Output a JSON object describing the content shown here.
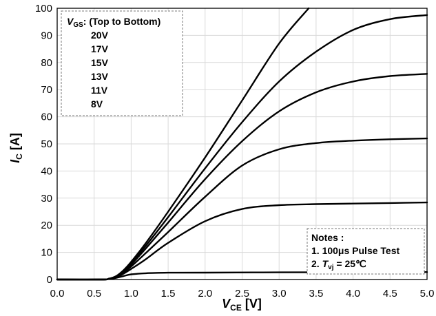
{
  "chart_data": {
    "type": "line",
    "xlabel": {
      "main": "V",
      "sub": "CE",
      "unit": "[V]"
    },
    "ylabel": {
      "main": "I",
      "sub": "C",
      "unit": "[A]"
    },
    "xlim": [
      0,
      5
    ],
    "ylim": [
      0,
      100
    ],
    "x_ticks": [
      "0.0",
      "0.5",
      "1.0",
      "1.5",
      "2.0",
      "2.5",
      "3.0",
      "3.5",
      "4.0",
      "4.5",
      "5.0"
    ],
    "y_ticks": [
      "0",
      "10",
      "20",
      "30",
      "40",
      "50",
      "60",
      "70",
      "80",
      "90",
      "100"
    ],
    "grid": true,
    "legend": {
      "placement": "top-left",
      "title_main": "V",
      "title_sub": "GS",
      "title_rest": ": (Top to Bottom)",
      "items": [
        "20V",
        "17V",
        "15V",
        "13V",
        "11V",
        "8V"
      ]
    },
    "notes": {
      "placement": "bottom-right",
      "title": "Notes :",
      "line1": "1. 100μs Pulse Test",
      "line2_prefix": "2. ",
      "line2_main": "T",
      "line2_sub": "vj",
      "line2_rest": " = 25℃"
    },
    "series": [
      {
        "x": [
          0,
          0.6,
          0.7,
          0.8,
          0.9,
          1.0,
          1.2,
          1.5,
          2.0,
          2.5,
          3.0,
          3.4
        ],
        "y": [
          0,
          0,
          0.3,
          1.3,
          3.5,
          6.5,
          13.5,
          25,
          45,
          66,
          87,
          100
        ]
      },
      {
        "x": [
          0,
          0.6,
          0.7,
          0.8,
          0.9,
          1.0,
          1.2,
          1.5,
          2.0,
          2.5,
          3.0,
          3.5,
          4.0,
          4.5,
          5.0
        ],
        "y": [
          0,
          0,
          0.3,
          1.2,
          3.3,
          6,
          12.5,
          23,
          41,
          58,
          73,
          84,
          92,
          96,
          97.5
        ]
      },
      {
        "x": [
          0,
          0.6,
          0.7,
          0.8,
          0.9,
          1.0,
          1.2,
          1.5,
          2.0,
          2.5,
          3.0,
          3.5,
          4.0,
          4.5,
          5.0
        ],
        "y": [
          0,
          0,
          0.3,
          1.1,
          3,
          5.5,
          11.5,
          21,
          37,
          51,
          62,
          69,
          73,
          75,
          75.8
        ]
      },
      {
        "x": [
          0,
          0.6,
          0.7,
          0.8,
          0.9,
          1.0,
          1.2,
          1.5,
          2.0,
          2.5,
          3.0,
          3.5,
          4.0,
          4.5,
          5.0
        ],
        "y": [
          0,
          0,
          0.3,
          1,
          2.6,
          4.8,
          9.8,
          17.5,
          30.5,
          42,
          48,
          50.3,
          51.2,
          51.7,
          52
        ]
      },
      {
        "x": [
          0,
          0.6,
          0.7,
          0.8,
          0.9,
          1.0,
          1.2,
          1.5,
          2.0,
          2.5,
          3.0,
          3.5,
          4.0,
          4.5,
          5.0
        ],
        "y": [
          0,
          0,
          0.25,
          0.9,
          2.2,
          3.9,
          7.5,
          13.5,
          21.5,
          26,
          27.4,
          27.8,
          28,
          28.2,
          28.4
        ]
      },
      {
        "x": [
          0,
          0.6,
          0.7,
          0.8,
          0.9,
          1.0,
          1.2,
          1.5,
          2.0,
          3.0,
          4.0,
          5.0
        ],
        "y": [
          0,
          0,
          0.2,
          0.6,
          1.3,
          1.9,
          2.3,
          2.5,
          2.55,
          2.65,
          2.7,
          2.75
        ]
      }
    ]
  }
}
